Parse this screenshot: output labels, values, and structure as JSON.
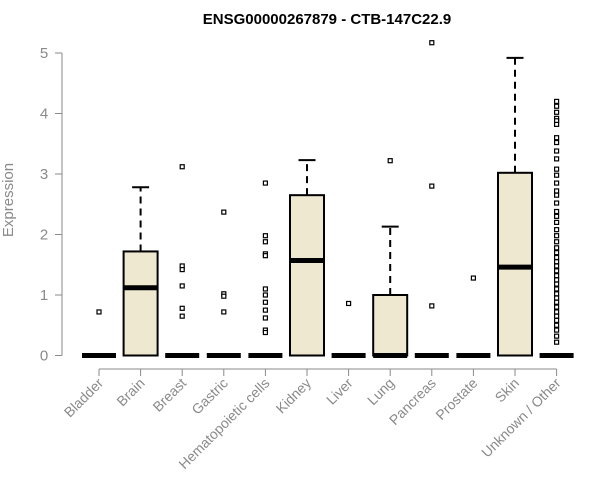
{
  "chart_data": {
    "type": "box",
    "title": "ENSG00000267879 - CTB-147C22.9",
    "xlabel": "",
    "ylabel": "Expression",
    "ylim": [
      0,
      5.2
    ],
    "yticks": [
      0,
      1,
      2,
      3,
      4,
      5
    ],
    "box_fill": "#efe8d0",
    "categories": [
      "Bladder",
      "Brain",
      "Breast",
      "Gastric",
      "Hematopoietic cells",
      "Kidney",
      "Liver",
      "Lung",
      "Pancreas",
      "Prostate",
      "Skin",
      "Unknown / Other"
    ],
    "boxes": [
      {
        "name": "Bladder",
        "min": 0,
        "q1": 0,
        "median": 0,
        "q3": 0,
        "max": 0,
        "outliers": [
          0.72
        ]
      },
      {
        "name": "Brain",
        "min": 0,
        "q1": 0,
        "median": 1.12,
        "q3": 1.72,
        "max": 2.78,
        "outliers": []
      },
      {
        "name": "Breast",
        "min": 0,
        "q1": 0,
        "median": 0,
        "q3": 0,
        "max": 0,
        "outliers": [
          3.12,
          1.48,
          1.42,
          1.15,
          0.78,
          0.65
        ]
      },
      {
        "name": "Gastric",
        "min": 0,
        "q1": 0,
        "median": 0,
        "q3": 0,
        "max": 0,
        "outliers": [
          2.37,
          1.02,
          0.98,
          0.72
        ]
      },
      {
        "name": "Hematopoietic cells",
        "min": 0,
        "q1": 0,
        "median": 0,
        "q3": 0,
        "max": 0,
        "outliers": [
          2.85,
          1.98,
          1.88,
          1.68,
          1.65,
          1.1,
          1.0,
          0.88,
          0.75,
          0.62,
          0.42,
          0.38
        ]
      },
      {
        "name": "Kidney",
        "min": 0,
        "q1": 0,
        "median": 1.57,
        "q3": 2.65,
        "max": 3.23,
        "outliers": []
      },
      {
        "name": "Liver",
        "min": 0,
        "q1": 0,
        "median": 0,
        "q3": 0,
        "max": 0,
        "outliers": [
          0.86
        ]
      },
      {
        "name": "Lung",
        "min": 0,
        "q1": 0,
        "median": 0,
        "q3": 1.0,
        "max": 2.13,
        "outliers": [
          3.22
        ]
      },
      {
        "name": "Pancreas",
        "min": 0,
        "q1": 0,
        "median": 0,
        "q3": 0,
        "max": 0,
        "outliers": [
          5.17,
          2.8,
          0.82
        ]
      },
      {
        "name": "Prostate",
        "min": 0,
        "q1": 0,
        "median": 0,
        "q3": 0,
        "max": 0,
        "outliers": [
          1.28
        ]
      },
      {
        "name": "Skin",
        "min": 0,
        "q1": 0,
        "median": 1.46,
        "q3": 3.02,
        "max": 4.92,
        "outliers": []
      },
      {
        "name": "Unknown / Other",
        "min": 0,
        "q1": 0,
        "median": 0,
        "q3": 0,
        "max": 0,
        "outliers": [
          4.2,
          4.12,
          4.02,
          3.92,
          3.88,
          3.82,
          3.6,
          3.52,
          3.38,
          3.25,
          3.08,
          2.98,
          2.85,
          2.72,
          2.65,
          2.52,
          2.38,
          2.3,
          2.2,
          2.08,
          1.98,
          1.88,
          1.78,
          1.7,
          1.62,
          1.55,
          1.48,
          1.4,
          1.32,
          1.25,
          1.18,
          1.1,
          1.02,
          0.95,
          0.88,
          0.8,
          0.72,
          0.65,
          0.58,
          0.5,
          0.42,
          0.32,
          0.22
        ]
      }
    ]
  }
}
